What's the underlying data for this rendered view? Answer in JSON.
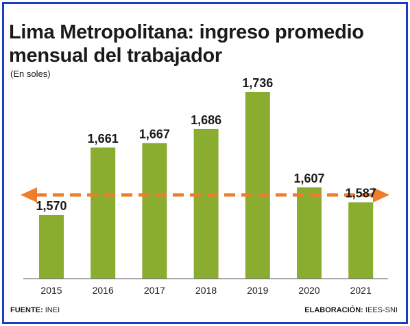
{
  "title_line1": "Lima Metropolitana: ingreso promedio",
  "title_line2": "mensual del trabajador",
  "subtitle": "(En soles)",
  "footer": {
    "source_label": "FUENTE:",
    "source_value": "INEI",
    "credit_label": "ELABORACIÓN:",
    "credit_value": "IEES-SNI"
  },
  "colors": {
    "bar": "#8aad2f",
    "arrow": "#f07d2c",
    "border": "#1a3cc8"
  },
  "chart_data": {
    "type": "bar",
    "categories": [
      "2015",
      "2016",
      "2017",
      "2018",
      "2019",
      "2020",
      "2021"
    ],
    "values": [
      1570,
      1661,
      1667,
      1686,
      1736,
      1607,
      1587
    ],
    "value_labels": [
      "1,570",
      "1,661",
      "1,667",
      "1,686",
      "1,736",
      "1,607",
      "1,587"
    ],
    "title": "Lima Metropolitana: ingreso promedio mensual del trabajador",
    "ylabel": "(En soles)",
    "reference_line": {
      "style": "dashed double-headed arrow"
    },
    "ylim": [
      1500,
      1750
    ],
    "grid": false,
    "legend": "none"
  }
}
